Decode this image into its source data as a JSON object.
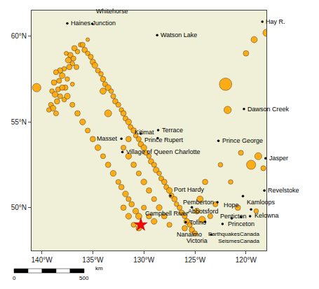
{
  "chart_data": {
    "type": "scatter",
    "xlim": [
      -141,
      -118
    ],
    "ylim": [
      47.5,
      61.5
    ],
    "xticks": [
      {
        "value": -140,
        "label": "140°W"
      },
      {
        "value": -135,
        "label": "135°W"
      },
      {
        "value": -130,
        "label": "130°W"
      },
      {
        "value": -125,
        "label": "125°W"
      },
      {
        "value": -120,
        "label": "120°W"
      }
    ],
    "yticks": [
      {
        "value": 50,
        "label": "50°N"
      },
      {
        "value": 55,
        "label": "55°N"
      },
      {
        "value": 60,
        "label": "60°N"
      }
    ],
    "grid": true,
    "series": [
      {
        "type": "area",
        "color": "#f0f0d8",
        "x": [
          -141,
          -118,
          -118,
          -141
        ],
        "y": [
          47.5,
          47.5,
          61.5,
          61.5
        ]
      },
      {
        "type": "scatter",
        "marker": "circle",
        "color": "#FFA500",
        "x": [
          -135.5,
          -136.2,
          -136.8,
          -136.5,
          -137.2,
          -137.6,
          -136.9,
          -137.4,
          -137.0,
          -136.6,
          -137.3,
          -137.8,
          -138.2,
          -138.6,
          -138.0,
          -137.5,
          -138.3,
          -138.8,
          -137.0,
          -137.7,
          -138.4,
          -139.0,
          -138.7,
          -138.2,
          -137.8,
          -138.5,
          -139.1,
          -138.9,
          -139.3,
          -138.6,
          -136.0,
          -135.8,
          -135.5,
          -135.2,
          -135.0,
          -134.8,
          -134.5,
          -134.2,
          -134.0,
          -133.8,
          -133.5,
          -133.2,
          -133.0,
          -132.8,
          -132.5,
          -132.2,
          -132.0,
          -131.8,
          -131.5,
          -131.3,
          -131.0,
          -130.8,
          -130.5,
          -130.3,
          -130.0,
          -129.8,
          -129.5,
          -129.3,
          -129.0,
          -128.8,
          -128.5,
          -128.3,
          -128.0,
          -127.8,
          -127.5,
          -127.3,
          -127.0,
          -126.8,
          -126.5,
          -126.3,
          -126.0,
          -125.8,
          -125.5,
          -125.3,
          -133.5,
          -134.0,
          -140.5,
          -131.5,
          -132.0,
          -131.5,
          -131.0,
          -130.5,
          -130.0,
          -129.5,
          -129.0,
          -128.5,
          -128.0,
          -127.5,
          -130.5,
          -130.8,
          -131.2,
          -131.5,
          -131.8,
          -132.2,
          -132.5,
          -133.0,
          -133.5,
          -134.0,
          -134.5,
          -135.0,
          -135.5,
          -136.0,
          -136.5,
          -137.0,
          -137.5,
          -138.0,
          -122.0,
          -121.8,
          -120.5,
          -122.5,
          -124.0,
          -124.5,
          -123.5,
          -119.5,
          -118.8,
          -118.3,
          -118.0,
          -119.2,
          -120.0,
          -124.3,
          -125.0,
          -126.0,
          -124.8,
          -123.0,
          -121.5,
          -120.8,
          -119.0,
          -129.5,
          -130.0,
          -129.0,
          -130.5,
          -131.0,
          -131.5,
          -132.0
        ],
        "y": [
          59.8,
          59.5,
          59.3,
          59.1,
          58.9,
          59.0,
          58.7,
          58.6,
          58.4,
          58.2,
          58.2,
          58.1,
          58.0,
          57.9,
          57.7,
          57.5,
          57.4,
          57.3,
          57.2,
          57.0,
          56.9,
          56.8,
          56.6,
          56.5,
          56.3,
          56.2,
          56.0,
          55.8,
          55.7,
          55.5,
          59.5,
          59.2,
          59.0,
          58.8,
          58.5,
          58.3,
          58.0,
          57.8,
          57.5,
          57.2,
          57.0,
          56.8,
          56.5,
          56.2,
          56.0,
          55.7,
          55.5,
          55.2,
          55.0,
          54.7,
          54.5,
          54.2,
          54.0,
          53.7,
          53.5,
          53.2,
          53.0,
          52.7,
          52.5,
          52.2,
          52.0,
          51.7,
          51.5,
          51.2,
          51.0,
          50.7,
          50.5,
          50.2,
          50.0,
          49.7,
          49.5,
          49.2,
          49.0,
          48.7,
          55.5,
          56.8,
          57.0,
          54.0,
          53.5,
          53.0,
          52.5,
          52.0,
          51.5,
          51.0,
          50.5,
          50.0,
          49.5,
          49.0,
          49.5,
          49.8,
          50.2,
          50.5,
          50.8,
          51.2,
          51.5,
          52.0,
          52.5,
          53.0,
          53.5,
          54.0,
          54.5,
          55.0,
          55.5,
          56.0,
          56.5,
          57.0,
          57.2,
          55.7,
          53.2,
          52.5,
          51.5,
          50.5,
          49.5,
          52.5,
          53.0,
          52.3,
          60.2,
          59.8,
          59.0,
          49.3,
          48.5,
          48.8,
          49.8,
          50.2,
          51.5,
          50.0,
          49.8,
          49.5,
          50.0,
          49.2,
          48.8,
          49.0,
          49.5,
          50.0
        ],
        "size": [
          6,
          8,
          10,
          8,
          10,
          7,
          9,
          11,
          8,
          9,
          10,
          8,
          10,
          9,
          11,
          8,
          9,
          10,
          7,
          10,
          9,
          8,
          11,
          9,
          8,
          10,
          9,
          11,
          8,
          9,
          9,
          10,
          8,
          9,
          10,
          11,
          9,
          8,
          10,
          9,
          11,
          8,
          9,
          10,
          9,
          8,
          10,
          9,
          11,
          9,
          10,
          8,
          9,
          10,
          11,
          9,
          8,
          10,
          9,
          11,
          8,
          9,
          10,
          9,
          11,
          9,
          10,
          8,
          9,
          10,
          9,
          11,
          9,
          10,
          14,
          12,
          18,
          10,
          9,
          11,
          10,
          9,
          11,
          10,
          9,
          11,
          10,
          9,
          12,
          11,
          10,
          9,
          11,
          10,
          9,
          11,
          10,
          9,
          11,
          10,
          9,
          11,
          10,
          9,
          11,
          10,
          30,
          15,
          9,
          8,
          10,
          12,
          9,
          20,
          14,
          9,
          14,
          12,
          10,
          13,
          9,
          10,
          11,
          9,
          8,
          10,
          8,
          10,
          9,
          11,
          10,
          9,
          11,
          10
        ]
      },
      {
        "type": "scatter",
        "marker": "star",
        "color": "#ff0000",
        "x": [
          -130.3
        ],
        "y": [
          49.0
        ]
      },
      {
        "type": "scatter",
        "marker": "dot",
        "color": "#000000",
        "x": [
          -137.5,
          -135.05,
          -118.4,
          -128.7,
          -120.2,
          -128.6,
          -130.3,
          -132.2,
          -128.65,
          -132.1,
          -122.7,
          -118.08,
          -118.2,
          -120.3,
          -122.8,
          -119.5,
          -119.6,
          -120.5,
          -127.4,
          -125.3,
          -125.9,
          -124.0,
          -122.3,
          -121.4,
          -123.4
        ],
        "y": [
          60.75,
          60.72,
          60.85,
          60.06,
          55.76,
          54.52,
          54.32,
          54.02,
          54.05,
          53.25,
          53.9,
          52.88,
          51.0,
          50.67,
          50.32,
          49.9,
          49.5,
          49.46,
          50.69,
          50.02,
          49.15,
          49.17,
          49.05,
          49.38,
          48.43
        ],
        "labels": [
          "Haines Junction",
          "Whitehorse",
          "Hay R.",
          "Watson Lake",
          "Dawson Creek",
          "Terrace",
          "Prince Rupert",
          "Masset",
          "Kitimat",
          "Village of Queen Charlotte",
          "Prince George",
          "Jasper",
          "Revelstoke",
          "Kamloops",
          "Pemberton",
          "Kelowna",
          "Penticton",
          "Princeton",
          "Port Hardy",
          "Campbell River",
          "Tofino",
          "Nanaimo",
          "Abbotsford",
          "Hope",
          "Victoria"
        ]
      }
    ],
    "annotations": [
      "EarthquakesCanada\nSeismesCanada"
    ],
    "scale_bar": {
      "ticks": [
        0,
        500
      ],
      "unit": "km"
    }
  }
}
